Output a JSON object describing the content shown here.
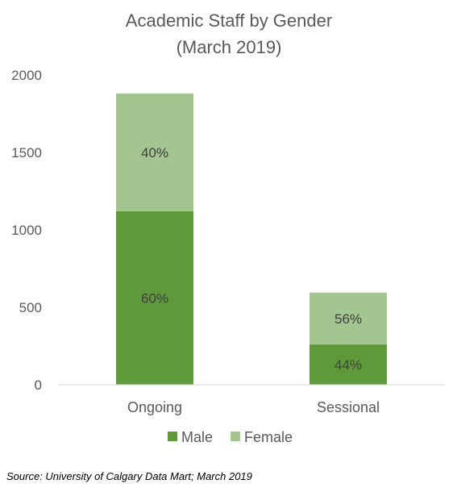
{
  "chart_data": {
    "type": "bar",
    "stacked": true,
    "title": [
      "Academic Staff by Gender",
      "(March 2019)"
    ],
    "categories": [
      "Ongoing",
      "Sessional"
    ],
    "series": [
      {
        "name": "Male",
        "values": [
          1120,
          260
        ],
        "labels": [
          "60%",
          "44%"
        ],
        "color": "#5f9a3a"
      },
      {
        "name": "Female",
        "values": [
          760,
          335
        ],
        "labels": [
          "40%",
          "56%"
        ],
        "color": "#a3c58f"
      }
    ],
    "ylim": [
      0,
      2000
    ],
    "yticks": [
      0,
      500,
      1000,
      1500,
      2000
    ],
    "grid": false,
    "legend": "bottom"
  },
  "source": "Source: University of Calgary Data Mart; March 2019"
}
